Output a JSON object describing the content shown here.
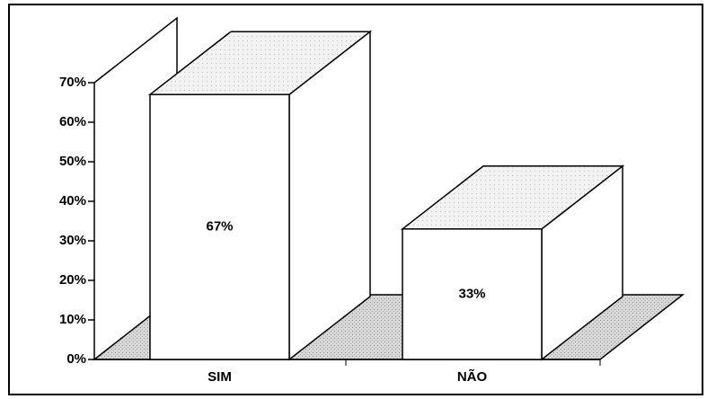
{
  "chart_data": {
    "type": "bar3d",
    "categories": [
      "SIM",
      "NÃO"
    ],
    "values": [
      67,
      33
    ],
    "value_labels": [
      "67%",
      "33%"
    ],
    "color": "#ffffff",
    "ylim": [
      0,
      70
    ],
    "yticks": [
      {
        "value": 0,
        "label": "0%"
      },
      {
        "value": 10,
        "label": "10%"
      },
      {
        "value": 20,
        "label": "20%"
      },
      {
        "value": 30,
        "label": "30%"
      },
      {
        "value": 40,
        "label": "40%"
      },
      {
        "value": 50,
        "label": "50%"
      },
      {
        "value": 60,
        "label": "60%"
      },
      {
        "value": 70,
        "label": "70%"
      }
    ]
  }
}
